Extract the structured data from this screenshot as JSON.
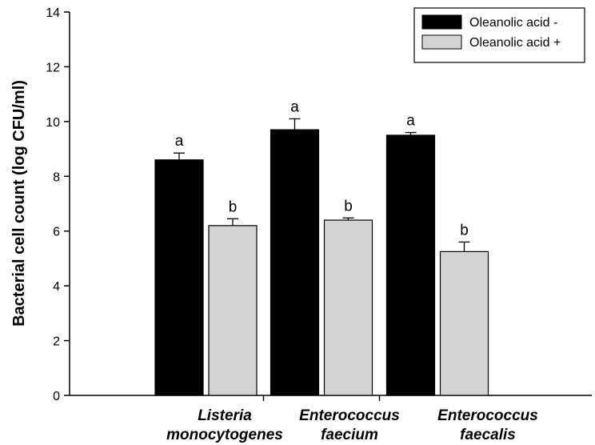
{
  "chart_data": {
    "type": "bar",
    "title": "",
    "xlabel": "",
    "ylabel": "Bacterial cell count (log CFU/ml)",
    "ylim": [
      0,
      14
    ],
    "yticks": [
      0,
      2,
      4,
      6,
      8,
      10,
      12,
      14
    ],
    "grid": false,
    "legend_position": "top-right",
    "categories": [
      [
        "Listeria",
        "monocytogenes"
      ],
      [
        "Enterococcus",
        "faecium"
      ],
      [
        "Enterococcus",
        "faecalis"
      ]
    ],
    "series": [
      {
        "name": "Oleanolic acid -",
        "color": "#000000",
        "values": [
          8.6,
          9.7,
          9.5
        ],
        "errors": [
          0.25,
          0.4,
          0.1
        ],
        "labels": [
          "a",
          "a",
          "a"
        ]
      },
      {
        "name": "Oleanolic acid +",
        "color": "#d3d3d3",
        "values": [
          6.2,
          6.4,
          5.25
        ],
        "errors": [
          0.25,
          0.08,
          0.35
        ],
        "labels": [
          "b",
          "b",
          "b"
        ]
      }
    ]
  }
}
